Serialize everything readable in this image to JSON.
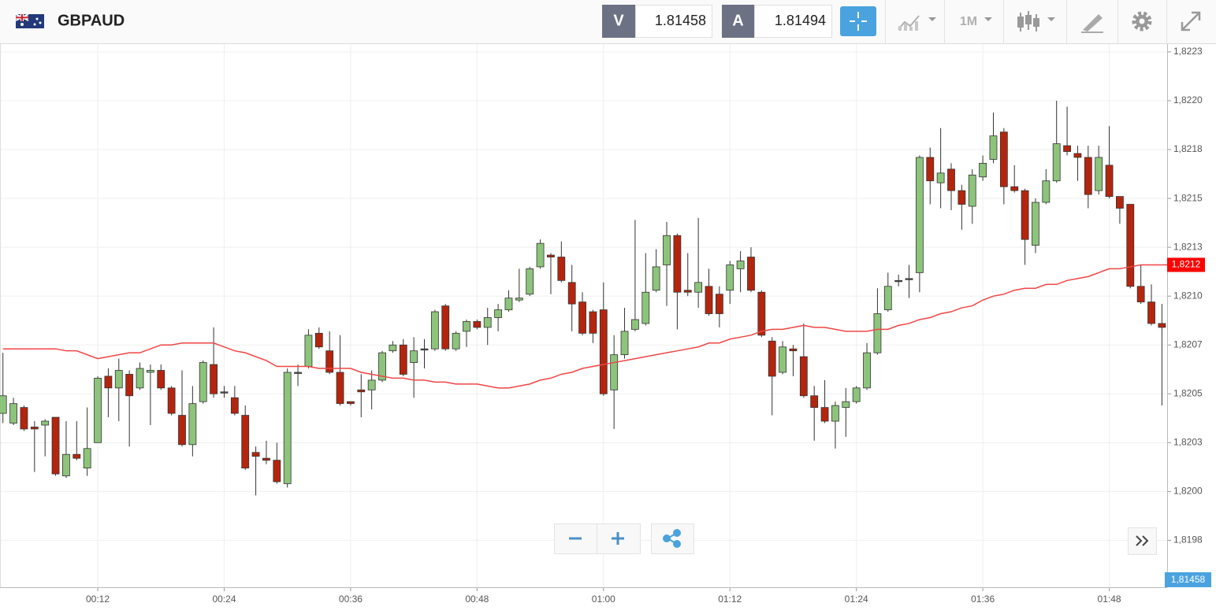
{
  "header": {
    "symbol": "GBPAUD",
    "sell_label": "V",
    "sell": "1.81458",
    "buy_label": "A",
    "buy": "1.81494",
    "timeframe": "1M"
  },
  "chart_data": {
    "type": "candlestick",
    "categories": [
      null,
      null,
      null,
      null,
      null,
      null,
      null,
      null,
      null,
      "00:12",
      null,
      null,
      null,
      null,
      null,
      null,
      null,
      null,
      null,
      null,
      null,
      "00:24",
      null,
      null,
      null,
      null,
      null,
      null,
      null,
      null,
      null,
      null,
      null,
      "00:36",
      null,
      null,
      null,
      null,
      null,
      null,
      null,
      null,
      null,
      null,
      null,
      "00:48",
      null,
      null,
      null,
      null,
      null,
      null,
      null,
      null,
      null,
      null,
      null,
      "01:00",
      null,
      null,
      null,
      null,
      null,
      null,
      null,
      null,
      null,
      null,
      null,
      "01:12",
      null,
      null,
      null,
      null,
      null,
      null,
      null,
      null,
      null,
      null,
      null,
      "01:24",
      null,
      null,
      null,
      null,
      null,
      null,
      null,
      null,
      null,
      null,
      null,
      "01:36",
      null,
      null,
      null,
      null,
      null,
      null,
      null,
      null,
      null,
      null,
      null,
      "01:48",
      null,
      null,
      null,
      null,
      null
    ],
    "open": [
      1.8204,
      1.82035,
      1.82043,
      1.82033,
      1.82034,
      1.82038,
      1.82008,
      1.82019,
      1.82012,
      1.82025,
      1.82059,
      1.82053,
      1.8206,
      1.82053,
      1.82061,
      1.82062,
      1.82053,
      1.82039,
      1.82024,
      1.82046,
      1.82065,
      1.82051,
      1.82048,
      1.82039,
      1.8202,
      1.82017,
      1.82016,
      1.82004,
      1.82061,
      1.82064,
      1.82081,
      1.82072,
      1.82061,
      1.82046,
      1.82052,
      1.82052,
      1.82057,
      1.82072,
      1.82075,
      1.82066,
      1.82073,
      1.82073,
      1.82095,
      1.82073,
      1.82082,
      1.82087,
      1.82084,
      1.82089,
      1.82093,
      1.82098,
      1.82101,
      1.82115,
      1.82121,
      1.8212,
      1.82107,
      1.82097,
      1.82092,
      1.82093,
      1.82052,
      1.8207,
      1.82083,
      1.82086,
      1.82103,
      1.82116,
      1.82131,
      1.82103,
      1.82102,
      1.82105,
      1.82101,
      1.82103,
      1.82114,
      1.8212,
      1.82102,
      1.82077,
      1.82061,
      1.82073,
      1.82069,
      1.82049,
      1.82043,
      1.82036,
      1.82043,
      1.82046,
      1.82053,
      1.82071,
      1.82093,
      1.82108,
      1.82109,
      1.82112,
      1.82171,
      1.82158,
      1.82165,
      1.82154,
      1.82146,
      1.82161,
      1.8217,
      1.82184,
      1.82156,
      1.82154,
      1.82126,
      1.82148,
      1.82159,
      1.82177,
      1.82173,
      1.82171,
      1.82154,
      1.82167,
      1.82151,
      1.82147,
      1.82105,
      1.82097,
      1.82086
    ],
    "high": [
      1.82071,
      1.82048,
      1.82044,
      1.82036,
      1.82037,
      1.82038,
      1.82036,
      1.82036,
      1.82043,
      1.82059,
      1.82063,
      1.82068,
      1.82062,
      1.82066,
      1.82065,
      1.82065,
      1.82054,
      1.82062,
      1.82054,
      1.82067,
      1.82084,
      1.82054,
      1.82054,
      1.82044,
      1.82023,
      1.82026,
      1.82025,
      1.82063,
      1.82065,
      1.82083,
      1.82084,
      1.82082,
      1.8208,
      1.82046,
      1.8206,
      1.82062,
      1.82072,
      1.82077,
      1.82078,
      1.82079,
      1.82078,
      1.82093,
      1.82096,
      1.82082,
      1.82088,
      1.82088,
      1.82094,
      1.82096,
      1.82103,
      1.82114,
      1.82115,
      1.82129,
      1.82122,
      1.82128,
      1.82116,
      1.82102,
      1.82093,
      1.82107,
      1.8208,
      1.82094,
      1.82139,
      1.82122,
      1.82124,
      1.82138,
      1.82132,
      1.82122,
      1.8214,
      1.82114,
      1.82105,
      1.82118,
      1.82123,
      1.82125,
      1.82103,
      1.82079,
      1.82077,
      1.82075,
      1.82086,
      1.82054,
      1.82057,
      1.82046,
      1.82053,
      1.82054,
      1.82076,
      1.82104,
      1.82112,
      1.82111,
      1.82116,
      1.82172,
      1.82176,
      1.82186,
      1.82168,
      1.82157,
      1.82165,
      1.82172,
      1.82194,
      1.82186,
      1.82167,
      1.82155,
      1.8215,
      1.82165,
      1.822,
      1.82197,
      1.82177,
      1.82177,
      1.82177,
      1.82187,
      1.82151,
      1.82147,
      1.82116,
      1.82106,
      1.82096
    ],
    "low": [
      1.82035,
      1.82034,
      1.82031,
      1.8201,
      1.82018,
      1.82008,
      1.82007,
      1.82016,
      1.82008,
      1.82025,
      1.82038,
      1.82036,
      1.82023,
      1.82052,
      1.82034,
      1.82052,
      1.82039,
      1.82023,
      1.82018,
      1.82045,
      1.82048,
      1.82048,
      1.82039,
      1.82011,
      1.81998,
      1.82014,
      1.82004,
      1.82002,
      1.82054,
      1.82063,
      1.82073,
      1.8206,
      1.82044,
      1.82044,
      1.82038,
      1.82042,
      1.82056,
      1.82071,
      1.82059,
      1.82048,
      1.82063,
      1.82072,
      1.82072,
      1.82072,
      1.82074,
      1.82083,
      1.82075,
      1.82082,
      1.82092,
      1.82097,
      1.821,
      1.82114,
      1.82101,
      1.82107,
      1.82082,
      1.8208,
      1.82076,
      1.82049,
      1.82032,
      1.82068,
      1.82082,
      1.82085,
      1.82102,
      1.82095,
      1.82083,
      1.821,
      1.82094,
      1.8209,
      1.82084,
      1.82096,
      1.82102,
      1.82102,
      1.82079,
      1.82039,
      1.8206,
      1.82059,
      1.82048,
      1.82026,
      1.82035,
      1.82022,
      1.82028,
      1.82045,
      1.82052,
      1.8207,
      1.82092,
      1.82105,
      1.82099,
      1.82102,
      1.82147,
      1.82145,
      1.82144,
      1.82134,
      1.82137,
      1.82159,
      1.82168,
      1.82147,
      1.82153,
      1.82116,
      1.82122,
      1.82147,
      1.82158,
      1.82172,
      1.82159,
      1.82145,
      1.82152,
      1.8215,
      1.82137,
      1.82104,
      1.82096,
      1.82085,
      1.82044
    ],
    "close": [
      1.82049,
      1.82045,
      1.82032,
      1.82032,
      1.82036,
      1.82009,
      1.82019,
      1.82017,
      1.82022,
      1.82058,
      1.82053,
      1.82062,
      1.82049,
      1.82063,
      1.82062,
      1.82053,
      1.8204,
      1.82024,
      1.82045,
      1.82066,
      1.8205,
      1.82051,
      1.8204,
      1.82012,
      1.82018,
      1.82016,
      1.82005,
      1.82061,
      1.82061,
      1.8208,
      1.82074,
      1.82061,
      1.82045,
      1.82045,
      1.82051,
      1.82057,
      1.82071,
      1.82075,
      1.8206,
      1.82072,
      1.82073,
      1.82092,
      1.82073,
      1.82081,
      1.82087,
      1.82084,
      1.82089,
      1.82093,
      1.82099,
      1.82099,
      1.82114,
      1.82127,
      1.8212,
      1.82108,
      1.82096,
      1.82081,
      1.82081,
      1.8205,
      1.8207,
      1.82082,
      1.82088,
      1.82102,
      1.82115,
      1.82131,
      1.82102,
      1.82102,
      1.82107,
      1.82091,
      1.82091,
      1.82116,
      1.82118,
      1.82103,
      1.8208,
      1.82059,
      1.82074,
      1.82072,
      1.82049,
      1.82043,
      1.82036,
      1.82044,
      1.82046,
      1.82053,
      1.82071,
      1.82091,
      1.82105,
      1.82108,
      1.82109,
      1.82171,
      1.82159,
      1.82163,
      1.82154,
      1.82147,
      1.82162,
      1.82168,
      1.82182,
      1.82156,
      1.82154,
      1.82129,
      1.82148,
      1.82159,
      1.82178,
      1.82174,
      1.82171,
      1.82152,
      1.82171,
      1.82151,
      1.82145,
      1.82105,
      1.82097,
      1.82086,
      1.82084
    ],
    "up_color": "#8dc47b",
    "down_color": "#b4250e",
    "ma": {
      "color": "#f04545",
      "values": [
        1.82073,
        1.82073,
        1.82073,
        1.82073,
        1.82073,
        1.82073,
        1.82072,
        1.82072,
        1.8207,
        1.82068,
        1.82069,
        1.8207,
        1.82071,
        1.82071,
        1.82073,
        1.82075,
        1.82075,
        1.82076,
        1.82076,
        1.82076,
        1.82076,
        1.82074,
        1.82072,
        1.82071,
        1.82069,
        1.82067,
        1.82064,
        1.82064,
        1.82064,
        1.82064,
        1.82063,
        1.82063,
        1.82063,
        1.82063,
        1.82061,
        1.8206,
        1.82059,
        1.82058,
        1.82058,
        1.82057,
        1.82057,
        1.82056,
        1.82056,
        1.82055,
        1.82055,
        1.82055,
        1.82054,
        1.82053,
        1.82053,
        1.82054,
        1.82055,
        1.82057,
        1.82058,
        1.8206,
        1.82061,
        1.82063,
        1.82064,
        1.82065,
        1.82066,
        1.82067,
        1.82068,
        1.82069,
        1.8207,
        1.82071,
        1.82072,
        1.82073,
        1.82074,
        1.82076,
        1.82076,
        1.82078,
        1.82079,
        1.8208,
        1.82082,
        1.82083,
        1.82083,
        1.82084,
        1.82085,
        1.82084,
        1.82084,
        1.82083,
        1.82082,
        1.82082,
        1.82082,
        1.82083,
        1.82083,
        1.82085,
        1.82086,
        1.82088,
        1.82089,
        1.82091,
        1.82092,
        1.82094,
        1.82095,
        1.82098,
        1.821,
        1.82101,
        1.82103,
        1.82104,
        1.82104,
        1.82106,
        1.82106,
        1.82108,
        1.82109,
        1.8211,
        1.82112,
        1.82114,
        1.82114,
        1.82115,
        1.82116,
        1.82116,
        1.82116
      ],
      "tag": "1,8212"
    },
    "bid_tag": "1,81458",
    "ylim": [
      1.81951,
      1.82229
    ],
    "yticks": [
      {
        "value": 1.82225,
        "label": "1,8223"
      },
      {
        "value": 1.822,
        "label": "1,8220"
      },
      {
        "value": 1.82175,
        "label": "1,8218"
      },
      {
        "value": 1.8215,
        "label": "1,8215"
      },
      {
        "value": 1.82125,
        "label": "1,8213"
      },
      {
        "value": 1.821,
        "label": "1,8210"
      },
      {
        "value": 1.82075,
        "label": "1,8207"
      },
      {
        "value": 1.8205,
        "label": "1,8205"
      },
      {
        "value": 1.82025,
        "label": "1,8203"
      },
      {
        "value": 1.82,
        "label": "1,8200"
      },
      {
        "value": 1.81975,
        "label": "1,8198"
      }
    ],
    "grid": true
  }
}
